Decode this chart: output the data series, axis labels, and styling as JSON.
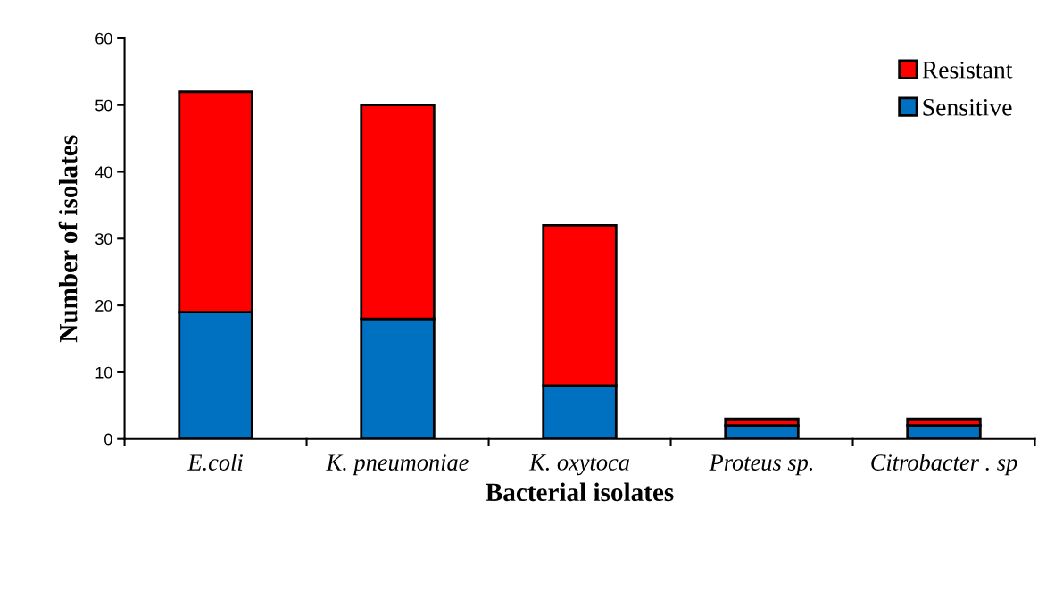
{
  "chart_data": {
    "type": "bar",
    "stacked": true,
    "xlabel": "Bacterial isolates",
    "ylabel": "Number of isolates",
    "categories": [
      "E.coli",
      "K. pneumoniae",
      "K. oxytoca",
      "Proteus sp.",
      "Citrobacter . sp"
    ],
    "series": [
      {
        "name": "Sensitive",
        "color": "#0070c0",
        "values": [
          19,
          18,
          8,
          2,
          2
        ]
      },
      {
        "name": "Resistant",
        "color": "#ff0000",
        "values": [
          33,
          32,
          24,
          1,
          1
        ]
      }
    ],
    "ylim": [
      0,
      60
    ],
    "yticks": [
      0,
      10,
      20,
      30,
      40,
      50,
      60
    ],
    "grid": false,
    "legend": "top right"
  }
}
